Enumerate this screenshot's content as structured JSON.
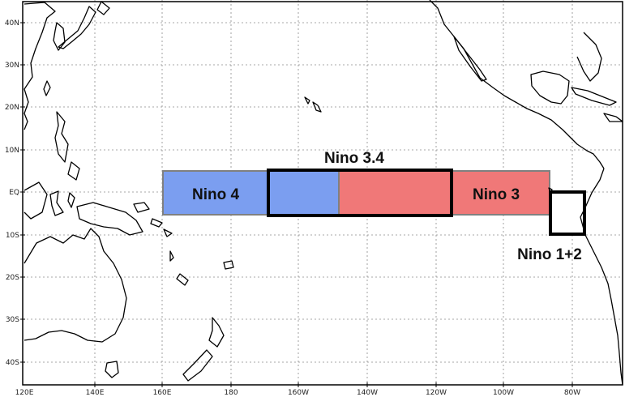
{
  "map": {
    "lon_ticks": [
      "120E",
      "140E",
      "160E",
      "180",
      "160W",
      "140W",
      "120W",
      "100W",
      "80W"
    ],
    "lat_ticks": [
      "40N",
      "30N",
      "20N",
      "10N",
      "EQ",
      "10S",
      "20S",
      "30S",
      "40S"
    ],
    "regions": {
      "nino4": {
        "label": "Nino 4",
        "color": "#7b9ef0"
      },
      "nino3": {
        "label": "Nino 3",
        "color": "#f07878"
      },
      "nino34": {
        "label": "Nino 3.4"
      },
      "nino12": {
        "label": "Nino 1+2"
      }
    },
    "colors": {
      "frame": "#000000",
      "grid": "#8a8a8a",
      "box_outline": "#808080"
    }
  }
}
